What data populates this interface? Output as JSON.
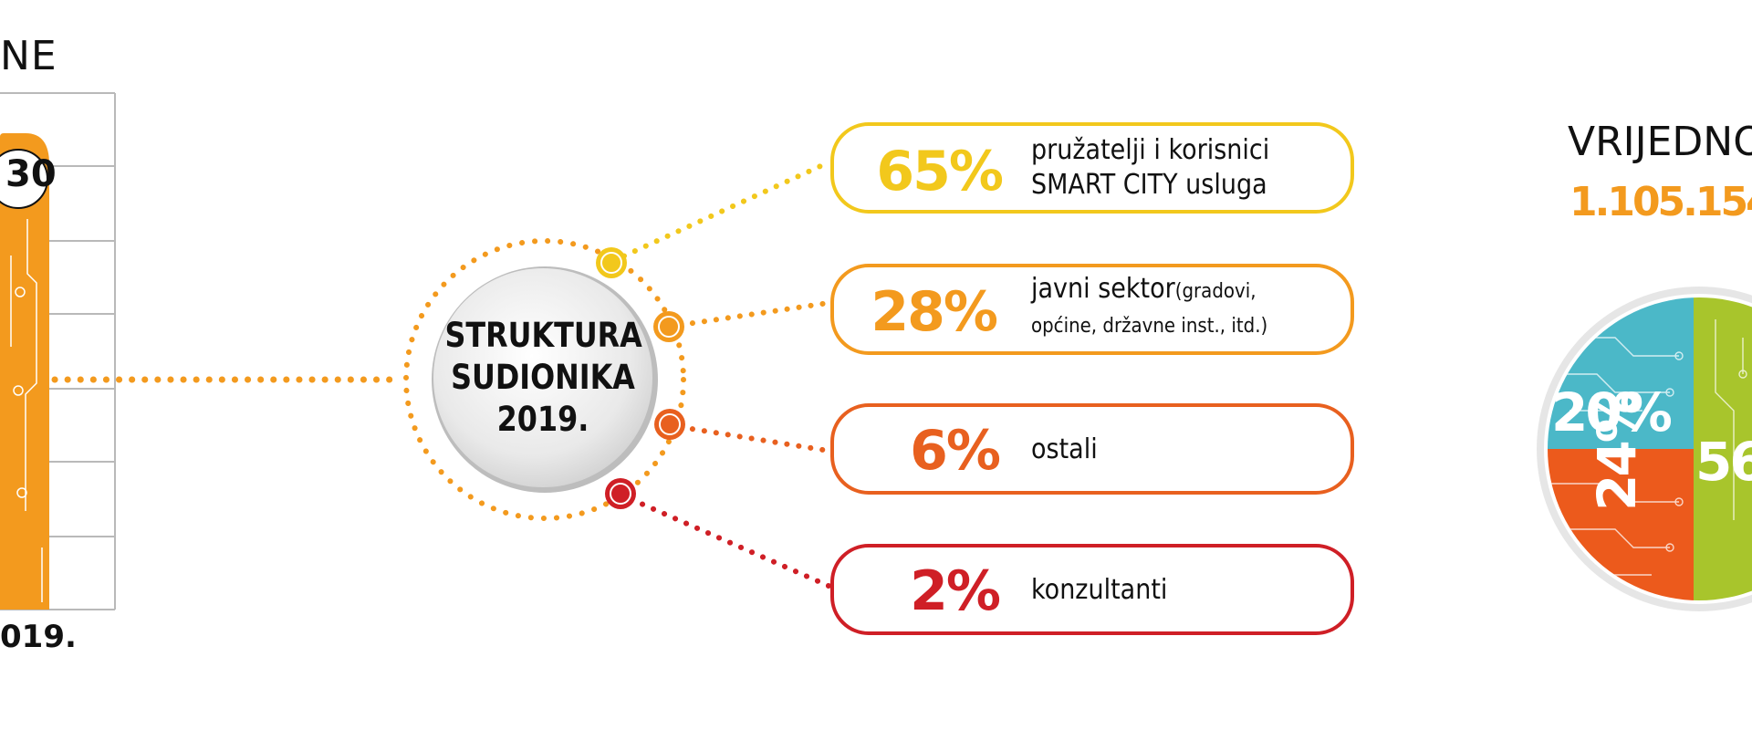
{
  "left_panel": {
    "title_fragment": "NE",
    "year_fragment": "019.",
    "value_fragment": "30"
  },
  "center": {
    "label_lines": [
      "STRUKTURA",
      "SUDIONIKA",
      "2019."
    ]
  },
  "chart_data": {
    "type": "bar",
    "title": "STRUKTURA SUDIONIKA 2019.",
    "categories": [
      "pružatelji i korisnici SMART CITY usluga",
      "javni sektor(gradovi, općine, državne inst., itd.)",
      "ostali",
      "konzultanti"
    ],
    "values": [
      65,
      28,
      6,
      2
    ],
    "unit": "%",
    "items": [
      {
        "pct": "65%",
        "line1": "pružatelji i korisnici",
        "line2": "SMART CITY usluga",
        "sub": "",
        "color": "#f2c81c"
      },
      {
        "pct": "28%",
        "line1": "javni sektor",
        "sub": "(gradovi,",
        "line2": "općine, državne inst., itd.)",
        "color": "#f39a1e"
      },
      {
        "pct": "6%",
        "line1": "ostali",
        "line2": "",
        "sub": "",
        "color": "#e8601f"
      },
      {
        "pct": "2%",
        "line1": "konzultanti",
        "line2": "",
        "sub": "",
        "color": "#cf1f26"
      }
    ]
  },
  "right_panel": {
    "title_fragment": "VRIJEDNO",
    "value_fragment": "1.105.154",
    "pie_labels": [
      "20%",
      "24%",
      "56"
    ],
    "colors": {
      "teal": "#4bb8c8",
      "lime": "#a8c52c",
      "orange": "#ec5a1c"
    }
  },
  "colors": {
    "bar_orange": "#f39a1e",
    "grid": "#b9b9b9",
    "dots_left": "#f39a1e"
  }
}
